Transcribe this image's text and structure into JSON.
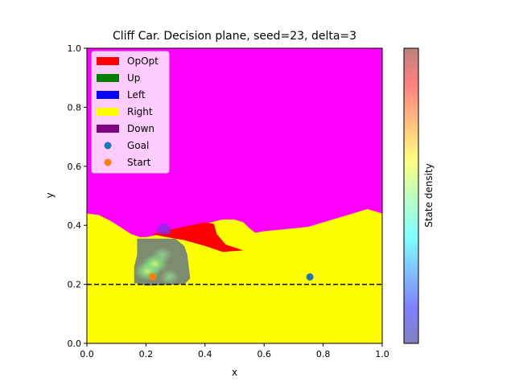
{
  "chart_data": {
    "type": "heatmap",
    "title": "Cliff Car. Decision plane, seed=23, delta=3",
    "xlabel": "x",
    "ylabel": "y",
    "xlim": [
      0.0,
      1.0
    ],
    "ylim": [
      0.0,
      1.0
    ],
    "xticks": [
      "0.0",
      "0.2",
      "0.4",
      "0.6",
      "0.8",
      "1.0"
    ],
    "yticks": [
      "0.0",
      "0.2",
      "0.4",
      "0.6",
      "0.8",
      "1.0"
    ],
    "legend_position": "top-left",
    "legend": [
      {
        "label": "OpOpt",
        "color": "#ff0000",
        "kind": "patch"
      },
      {
        "label": "Up",
        "color": "#008000",
        "kind": "patch"
      },
      {
        "label": "Left",
        "color": "#0000ff",
        "kind": "patch"
      },
      {
        "label": "Right",
        "color": "#ffff00",
        "kind": "patch"
      },
      {
        "label": "Down",
        "color": "#800080",
        "kind": "patch"
      },
      {
        "label": "Goal",
        "color": "#1f77b4",
        "kind": "marker"
      },
      {
        "label": "Start",
        "color": "#ff7f0e",
        "kind": "marker"
      }
    ],
    "background_region": {
      "label": "upper region",
      "color": "#ff00ff"
    },
    "right_region_boundary": [
      [
        0.0,
        0.44
      ],
      [
        0.04,
        0.435
      ],
      [
        0.08,
        0.415
      ],
      [
        0.12,
        0.39
      ],
      [
        0.15,
        0.37
      ],
      [
        0.18,
        0.36
      ],
      [
        0.2,
        0.36
      ],
      [
        0.25,
        0.37
      ],
      [
        0.3,
        0.385
      ],
      [
        0.35,
        0.395
      ],
      [
        0.42,
        0.41
      ],
      [
        0.46,
        0.42
      ],
      [
        0.5,
        0.42
      ],
      [
        0.53,
        0.41
      ],
      [
        0.55,
        0.39
      ],
      [
        0.57,
        0.375
      ],
      [
        0.6,
        0.38
      ],
      [
        0.65,
        0.385
      ],
      [
        0.7,
        0.39
      ],
      [
        0.75,
        0.395
      ],
      [
        0.8,
        0.41
      ],
      [
        0.85,
        0.425
      ],
      [
        0.9,
        0.44
      ],
      [
        0.95,
        0.455
      ],
      [
        1.0,
        0.44
      ]
    ],
    "opopt_region": [
      [
        0.22,
        0.37
      ],
      [
        0.28,
        0.385
      ],
      [
        0.35,
        0.4
      ],
      [
        0.4,
        0.41
      ],
      [
        0.43,
        0.405
      ],
      [
        0.44,
        0.37
      ],
      [
        0.47,
        0.335
      ],
      [
        0.53,
        0.315
      ],
      [
        0.46,
        0.31
      ],
      [
        0.4,
        0.33
      ],
      [
        0.33,
        0.35
      ],
      [
        0.27,
        0.36
      ]
    ],
    "down_region": [
      [
        0.235,
        0.385
      ],
      [
        0.25,
        0.405
      ],
      [
        0.27,
        0.405
      ],
      [
        0.285,
        0.39
      ],
      [
        0.28,
        0.37
      ],
      [
        0.245,
        0.37
      ]
    ],
    "cliff_line_y": 0.2,
    "points": {
      "goal": {
        "x": 0.755,
        "y": 0.225
      },
      "start": {
        "x": 0.222,
        "y": 0.225
      }
    },
    "density_cloud": [
      [
        0.17,
        0.355
      ],
      [
        0.3,
        0.355
      ],
      [
        0.33,
        0.33
      ],
      [
        0.34,
        0.3
      ],
      [
        0.35,
        0.22
      ],
      [
        0.33,
        0.2
      ],
      [
        0.2,
        0.195
      ],
      [
        0.16,
        0.205
      ],
      [
        0.16,
        0.26
      ],
      [
        0.17,
        0.3
      ]
    ],
    "density_hotspots": [
      {
        "x": 0.205,
        "y": 0.245,
        "level": "high"
      },
      {
        "x": 0.255,
        "y": 0.3,
        "level": "mid"
      },
      {
        "x": 0.28,
        "y": 0.225,
        "level": "mid"
      },
      {
        "x": 0.23,
        "y": 0.27,
        "level": "high"
      }
    ],
    "colorbar_label": "State density",
    "colorbar_colormap": "jet"
  }
}
